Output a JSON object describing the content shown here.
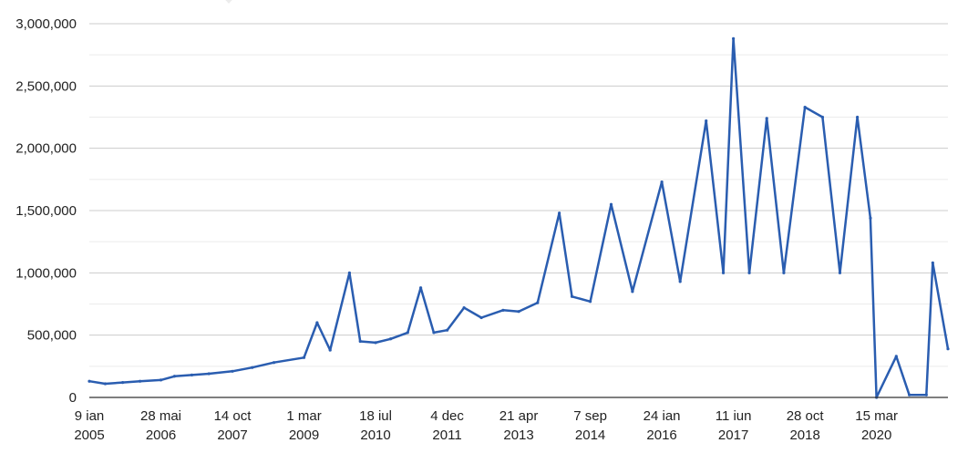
{
  "chart_data": {
    "type": "line",
    "title": "",
    "xlabel": "",
    "ylabel": "",
    "ylim": [
      0,
      3000000
    ],
    "y_ticks": [
      {
        "value": 0,
        "label": "0"
      },
      {
        "value": 500000,
        "label": "500,000"
      },
      {
        "value": 1000000,
        "label": "1,000,000"
      },
      {
        "value": 1500000,
        "label": "1,500,000"
      },
      {
        "value": 2000000,
        "label": "2,000,000"
      },
      {
        "value": 2500000,
        "label": "2,500,000"
      },
      {
        "value": 3000000,
        "label": "3,000,000"
      }
    ],
    "x_ticks": [
      {
        "date": "2005-01-09",
        "line1": "9 ian",
        "line2": "2005"
      },
      {
        "date": "2006-05-28",
        "line1": "28 mai",
        "line2": "2006"
      },
      {
        "date": "2007-10-14",
        "line1": "14 oct",
        "line2": "2007"
      },
      {
        "date": "2009-03-01",
        "line1": "1 mar",
        "line2": "2009"
      },
      {
        "date": "2010-07-18",
        "line1": "18 iul",
        "line2": "2010"
      },
      {
        "date": "2011-12-04",
        "line1": "4 dec",
        "line2": "2011"
      },
      {
        "date": "2013-04-21",
        "line1": "21 apr",
        "line2": "2013"
      },
      {
        "date": "2014-09-07",
        "line1": "7 sep",
        "line2": "2014"
      },
      {
        "date": "2016-01-24",
        "line1": "24 ian",
        "line2": "2016"
      },
      {
        "date": "2017-06-11",
        "line1": "11 iun",
        "line2": "2017"
      },
      {
        "date": "2018-10-28",
        "line1": "28 oct",
        "line2": "2018"
      },
      {
        "date": "2020-03-15",
        "line1": "15 mar",
        "line2": "2020"
      }
    ],
    "x_range": [
      "2005-01-09",
      "2021-07-31"
    ],
    "grid": true,
    "legend": "none",
    "series": [
      {
        "color": "#2a5db0",
        "points": [
          [
            "2005-01-09",
            130000
          ],
          [
            "2005-05-01",
            110000
          ],
          [
            "2005-09-01",
            120000
          ],
          [
            "2006-01-01",
            130000
          ],
          [
            "2006-05-28",
            140000
          ],
          [
            "2006-09-01",
            170000
          ],
          [
            "2007-01-01",
            180000
          ],
          [
            "2007-05-01",
            190000
          ],
          [
            "2007-10-14",
            210000
          ],
          [
            "2008-03-01",
            240000
          ],
          [
            "2008-08-01",
            280000
          ],
          [
            "2009-03-01",
            320000
          ],
          [
            "2009-06-01",
            600000
          ],
          [
            "2009-09-01",
            380000
          ],
          [
            "2010-01-15",
            1000000
          ],
          [
            "2010-04-01",
            450000
          ],
          [
            "2010-07-18",
            440000
          ],
          [
            "2010-11-01",
            470000
          ],
          [
            "2011-03-01",
            520000
          ],
          [
            "2011-06-01",
            880000
          ],
          [
            "2011-09-01",
            520000
          ],
          [
            "2011-12-04",
            540000
          ],
          [
            "2012-04-01",
            720000
          ],
          [
            "2012-08-01",
            640000
          ],
          [
            "2013-01-01",
            700000
          ],
          [
            "2013-04-21",
            690000
          ],
          [
            "2013-09-01",
            760000
          ],
          [
            "2014-02-01",
            1480000
          ],
          [
            "2014-05-01",
            810000
          ],
          [
            "2014-09-07",
            770000
          ],
          [
            "2015-02-01",
            1550000
          ],
          [
            "2015-07-01",
            850000
          ],
          [
            "2016-01-24",
            1730000
          ],
          [
            "2016-06-01",
            930000
          ],
          [
            "2016-12-01",
            2220000
          ],
          [
            "2017-04-01",
            1000000
          ],
          [
            "2017-06-11",
            2880000
          ],
          [
            "2017-10-01",
            1000000
          ],
          [
            "2018-02-01",
            2240000
          ],
          [
            "2018-06-01",
            1000000
          ],
          [
            "2018-10-28",
            2330000
          ],
          [
            "2019-03-01",
            2250000
          ],
          [
            "2019-07-01",
            1000000
          ],
          [
            "2019-11-01",
            2250000
          ],
          [
            "2020-02-01",
            1440000
          ],
          [
            "2020-03-15",
            0
          ],
          [
            "2020-08-01",
            330000
          ],
          [
            "2020-11-01",
            20000
          ],
          [
            "2021-03-01",
            20000
          ],
          [
            "2021-04-15",
            1080000
          ],
          [
            "2021-07-31",
            390000
          ]
        ]
      }
    ]
  }
}
